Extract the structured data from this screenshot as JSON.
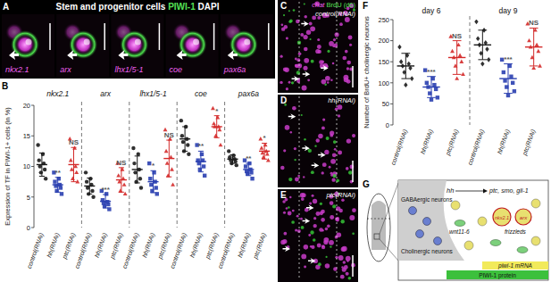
{
  "panel_labels": [
    "A",
    "B",
    "C",
    "D",
    "E",
    "F",
    "G"
  ],
  "panel_a": {
    "title": "Stem and progenitor cells",
    "stain1": "PIWI-1",
    "stain2": "DAPI",
    "images": [
      "nkx2.1",
      "arx",
      "lhx1/5-1",
      "coe",
      "pax6a"
    ]
  },
  "panel_ce": {
    "stain1": "chat",
    "stain2": "BrdU (d6)",
    "images": [
      "control(RNAi)",
      "hh(RNAi)",
      "ptc(RNAi)"
    ]
  },
  "chart_data": [
    {
      "type": "strip",
      "y_label": "Expression of TF in PIWI-1+ cells (in %)",
      "categories": [
        "nkx2.1",
        "arx",
        "lhx1/5-1",
        "coe",
        "pax6a"
      ],
      "ylim": [
        0,
        20
      ],
      "yticks": [
        0,
        5,
        10,
        15,
        20
      ],
      "series": [
        {
          "name": "control(RNAi)",
          "color": "#1a1a1a",
          "marker": "circle",
          "values": [
            10.3,
            6.8,
            9.5,
            14.5,
            11.2
          ],
          "errors": [
            1.9,
            1.3,
            2.2,
            2.0,
            0.7
          ],
          "points": [
            [
              13.5,
              12,
              11,
              10.5,
              10,
              9.5,
              9,
              8
            ],
            [
              9,
              8,
              7.5,
              7,
              6.5,
              6,
              5.5,
              5
            ],
            [
              13,
              12,
              10.5,
              9.5,
              9,
              8,
              7.5,
              6.5
            ],
            [
              17.5,
              16.5,
              15,
              14.5,
              14,
              13.5,
              12.5,
              12
            ],
            [
              12.5,
              11.8,
              11.5,
              11.2,
              11,
              10.8,
              10.5,
              10.2
            ]
          ]
        },
        {
          "name": "hh(RNAi)",
          "color": "#2a3fb0",
          "marker": "square",
          "values": [
            7.0,
            4.3,
            7.5,
            10.8,
            9.5
          ],
          "errors": [
            1.2,
            1.1,
            1.8,
            1.7,
            1.0
          ],
          "points": [
            [
              9,
              8,
              7.5,
              7,
              6.8,
              6.5,
              6,
              5.5
            ],
            [
              6,
              5.5,
              4.5,
              4.2,
              4,
              3.8,
              3.5,
              3
            ],
            [
              10.5,
              9,
              8,
              7.5,
              7,
              6.5,
              6,
              5.5
            ],
            [
              13.5,
              12,
              11,
              11,
              10.5,
              10,
              9.5,
              8.5
            ],
            [
              11,
              10.5,
              10,
              9.5,
              9.2,
              9,
              8.8,
              8
            ]
          ],
          "significance": [
            "**",
            "***",
            "*",
            "**",
            "**"
          ]
        },
        {
          "name": "ptc(RNAi)",
          "color": "#d42a2a",
          "marker": "triangle",
          "values": [
            10.3,
            7.8,
            11.3,
            16.5,
            12.5
          ],
          "errors": [
            2.8,
            2.0,
            3.0,
            1.8,
            1.3
          ],
          "points": [
            [
              14.5,
              13,
              11,
              10,
              9.5,
              9,
              8,
              7.5
            ],
            [
              10.5,
              9.5,
              8.5,
              8,
              7.5,
              7,
              6,
              5.5
            ],
            [
              16,
              14.5,
              12.5,
              11.5,
              10.5,
              9.5,
              8.5,
              7
            ],
            [
              19.5,
              18,
              17,
              16.5,
              16.5,
              16,
              15,
              13.5
            ],
            [
              14.5,
              13.5,
              13,
              12.5,
              12.2,
              12,
              11.5,
              11
            ]
          ],
          "significance": [
            "NS",
            "NS",
            "NS",
            "*",
            "*"
          ]
        }
      ]
    },
    {
      "type": "strip",
      "y_label": "Number of BrdU+ cholinergic neurons",
      "categories": [
        "day 6",
        "day 9"
      ],
      "ylim": [
        0,
        250
      ],
      "yticks": [
        0,
        50,
        100,
        150,
        200,
        250
      ],
      "series": [
        {
          "name": "control(RNAi)",
          "color": "#1a1a1a",
          "marker": "diamond",
          "values": [
            140,
            190
          ],
          "errors": [
            30,
            35
          ],
          "points": [
            [
              185,
              165,
              150,
              145,
              140,
              135,
              125,
              110,
              95
            ],
            [
              245,
              225,
              205,
              195,
              190,
              180,
              170,
              155,
              145
            ]
          ]
        },
        {
          "name": "hh(RNAi)",
          "color": "#2a3fb0",
          "marker": "square",
          "values": [
            90,
            110
          ],
          "errors": [
            25,
            35
          ],
          "points": [
            [
              130,
              110,
              100,
              95,
              90,
              85,
              75,
              65,
              60
            ],
            [
              155,
              140,
              125,
              115,
              105,
              100,
              90,
              80,
              70
            ]
          ],
          "significance": [
            "***",
            "***"
          ]
        },
        {
          "name": "ptc(RNAi)",
          "color": "#d42a2a",
          "marker": "triangle",
          "values": [
            160,
            185
          ],
          "errors": [
            40,
            45
          ],
          "points": [
            [
              210,
              190,
              175,
              165,
              160,
              150,
              140,
              120,
              110
            ],
            [
              240,
              225,
              200,
              190,
              185,
              175,
              160,
              140,
              135
            ]
          ],
          "significance": [
            "NS",
            "NS"
          ]
        }
      ]
    }
  ],
  "panel_g": {
    "hh": "hh",
    "targets": "ptc, smo, gli-1",
    "gaba": "GABAergic neurons",
    "chol": "Cholinergic neurons",
    "wnt": "wnt11-6",
    "fz": "frizzleds",
    "tf1": "nkx2.1",
    "tf2": "arx",
    "mrna": "piwi-1 mRNA",
    "protein": "PIWI-1 protein"
  }
}
